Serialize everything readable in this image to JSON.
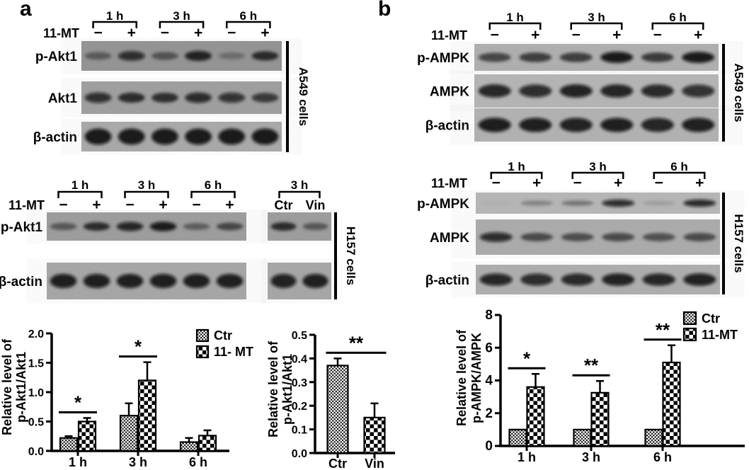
{
  "figure": {
    "panel_a_label": "a",
    "panel_b_label": "b"
  },
  "colors": {
    "ink": "#000000",
    "background": "#ffffff"
  },
  "blots": {
    "a_top": {
      "cell_line": "A549 cells",
      "treatment_label": "11-MT",
      "time_labels": [
        "1 h",
        "3 h",
        "6 h"
      ],
      "lane_signs": [
        "−",
        "+",
        "−",
        "+",
        "−",
        "+"
      ],
      "rows": [
        {
          "label": "p-Akt1",
          "bands": [
            0.45,
            0.85,
            0.5,
            0.95,
            0.3,
            0.8
          ]
        },
        {
          "label": "Akt1",
          "bands": [
            0.85,
            0.8,
            0.78,
            0.88,
            0.82,
            0.7
          ]
        },
        {
          "label": "β-actin",
          "bands": [
            1,
            1,
            1,
            1,
            1,
            1
          ]
        }
      ]
    },
    "a_h157": {
      "cell_line": "H157 cells",
      "treatment_label": "11-MT",
      "time_labels": [
        "1 h",
        "3 h",
        "6 h"
      ],
      "lane_signs": [
        "−",
        "+",
        "−",
        "+",
        "−",
        "+"
      ],
      "sub_time_label": "3 h",
      "sub_lane_labels": [
        "Ctr",
        "Vin"
      ],
      "rows": [
        {
          "label": "p-Akt1",
          "bands": [
            0.5,
            0.8,
            0.92,
            1.0,
            0.45,
            0.62
          ],
          "sub_bands": [
            0.8,
            0.5
          ]
        },
        {
          "label": "β-actin",
          "bands": [
            0.97,
            0.97,
            0.97,
            0.97,
            0.97,
            0.97
          ],
          "sub_bands": [
            0.95,
            0.97
          ]
        }
      ]
    },
    "b_a549": {
      "cell_line": "A549 cells",
      "treatment_label": "11-MT",
      "time_labels": [
        "1 h",
        "3 h",
        "6 h"
      ],
      "lane_signs": [
        "−",
        "+",
        "−",
        "+",
        "−",
        "+"
      ],
      "rows": [
        {
          "label": "p-AMPK",
          "bands": [
            0.65,
            0.7,
            0.7,
            1.0,
            0.72,
            1.0
          ]
        },
        {
          "label": "AMPK",
          "bands": [
            0.92,
            0.88,
            0.95,
            0.93,
            0.9,
            0.85
          ]
        },
        {
          "label": "β-actin",
          "bands": [
            0.98,
            0.97,
            0.95,
            0.97,
            0.93,
            0.96
          ]
        }
      ]
    },
    "b_h157": {
      "cell_line": "H157 cells",
      "treatment_label": "11-MT",
      "time_labels": [
        "1 h",
        "3 h",
        "6 h"
      ],
      "lane_signs": [
        "−",
        "+",
        "−",
        "+",
        "−",
        "+"
      ],
      "rows": [
        {
          "label": "p-AMPK",
          "bands": [
            0.04,
            0.3,
            0.38,
            0.88,
            0.15,
            0.9
          ]
        },
        {
          "label": "AMPK",
          "bands": [
            0.88,
            0.62,
            0.6,
            0.62,
            0.58,
            0.62
          ]
        },
        {
          "label": "β-actin",
          "bands": [
            0.92,
            0.88,
            0.9,
            0.95,
            0.92,
            0.95
          ]
        }
      ]
    }
  },
  "chart_data": [
    {
      "id": "p-akt1-over-akt1-timecourse",
      "type": "bar",
      "ylabel_lines": [
        "Relative level of",
        "p-Akt1/Akt1"
      ],
      "categories": [
        "1 h",
        "3 h",
        "6 h"
      ],
      "series": [
        {
          "name": "Ctr",
          "pattern": "dots",
          "values": [
            0.22,
            0.6,
            0.15
          ],
          "errors": [
            0.03,
            0.21,
            0.07
          ]
        },
        {
          "name": "11- MT",
          "pattern": "checker",
          "values": [
            0.5,
            1.2,
            0.26
          ],
          "errors": [
            0.06,
            0.31,
            0.09
          ]
        }
      ],
      "ylim": [
        0,
        2.0
      ],
      "yticks": [
        "0.0",
        "0.5",
        "1.0",
        "1.5",
        "2.0"
      ],
      "legend_position": "top-right",
      "grid": false,
      "significance": [
        {
          "categories": [
            "1 h"
          ],
          "label": "*"
        },
        {
          "categories": [
            "3 h"
          ],
          "label": "*"
        }
      ]
    },
    {
      "id": "p-akt1-over-akt1-ctr-vs-vin",
      "type": "bar",
      "ylabel_lines": [
        "Relative level of",
        "p-Akt1/Akt1"
      ],
      "categories": [
        "Ctr",
        "Vin"
      ],
      "series": [
        {
          "name": "",
          "patterns": [
            "dots",
            "checker"
          ],
          "values": [
            0.37,
            0.15
          ],
          "errors": [
            0.03,
            0.06
          ]
        }
      ],
      "ylim": [
        0,
        0.5
      ],
      "yticks": [
        "0.0",
        "0.1",
        "0.2",
        "0.3",
        "0.4",
        "0.5"
      ],
      "grid": false,
      "significance": [
        {
          "categories": [
            "Ctr",
            "Vin"
          ],
          "label": "**"
        }
      ]
    },
    {
      "id": "p-ampk-over-ampk-timecourse",
      "type": "bar",
      "ylabel_lines": [
        "Relative level of",
        "p-AMPK/AMPK"
      ],
      "categories": [
        "1 h",
        "3 h",
        "6 h"
      ],
      "series": [
        {
          "name": "Ctr",
          "pattern": "dots",
          "values": [
            1.0,
            1.0,
            1.0
          ],
          "errors": [
            0,
            0,
            0
          ]
        },
        {
          "name": "11-MT",
          "pattern": "checker",
          "values": [
            3.6,
            3.25,
            5.1
          ],
          "errors": [
            0.8,
            0.72,
            1.05
          ]
        }
      ],
      "ylim": [
        0,
        8
      ],
      "yticks": [
        "0",
        "2",
        "4",
        "6",
        "8"
      ],
      "legend_position": "top-right",
      "grid": false,
      "significance": [
        {
          "categories": [
            "1 h"
          ],
          "label": "*"
        },
        {
          "categories": [
            "3 h"
          ],
          "label": "**"
        },
        {
          "categories": [
            "6 h"
          ],
          "label": "**"
        }
      ]
    }
  ]
}
